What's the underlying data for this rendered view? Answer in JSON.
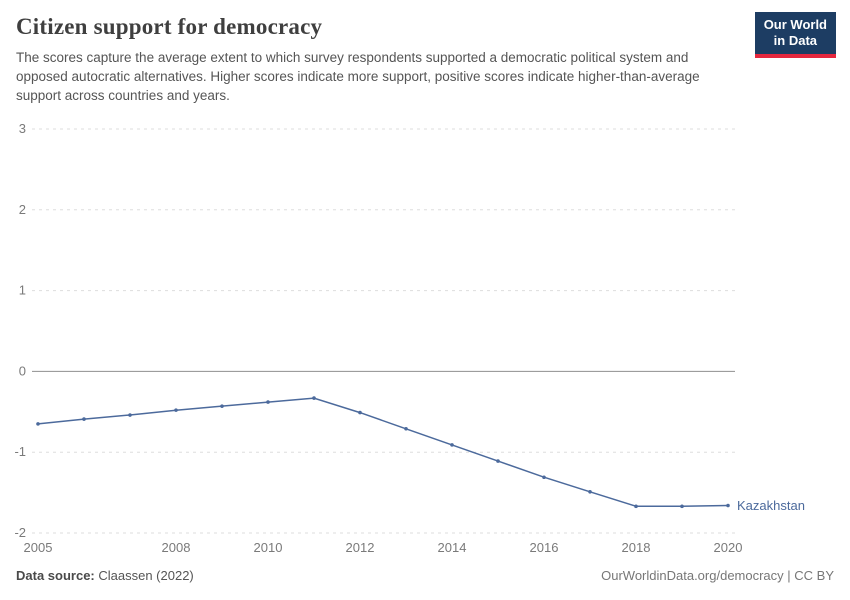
{
  "header": {
    "title": "Citizen support for democracy",
    "subtitle": "The scores capture the average extent to which survey respondents supported a democratic political system and opposed autocratic alternatives. Higher scores indicate more support, positive scores indicate higher-than-average support across countries and years."
  },
  "logo": {
    "line1": "Our World",
    "line2": "in Data"
  },
  "footer": {
    "source_label": "Data source:",
    "source_value": " Claassen (2022)",
    "right": "OurWorldinData.org/democracy | CC BY"
  },
  "chart_data": {
    "type": "line",
    "title": "Citizen support for democracy",
    "x": [
      2005,
      2006,
      2007,
      2008,
      2009,
      2010,
      2011,
      2012,
      2013,
      2014,
      2015,
      2016,
      2017,
      2018,
      2019,
      2020
    ],
    "series": [
      {
        "name": "Kazakhstan",
        "color": "#4C6A9C",
        "values": [
          -0.65,
          -0.59,
          -0.54,
          -0.48,
          -0.43,
          -0.38,
          -0.33,
          -0.51,
          -0.71,
          -0.91,
          -1.11,
          -1.31,
          -1.49,
          -1.67,
          -1.67,
          -1.66
        ]
      }
    ],
    "end_label": "Kazakhstan",
    "xlim": [
      2005,
      2020
    ],
    "ylim": [
      -2,
      3
    ],
    "x_ticks": [
      2005,
      2008,
      2010,
      2012,
      2014,
      2016,
      2018,
      2020
    ],
    "y_ticks": [
      3,
      2,
      1,
      0,
      -1,
      -2
    ],
    "grid": "horizontal-dashed",
    "zero_line": true,
    "legend_position": "end-of-line",
    "colors": {
      "gridline": "#dddddd",
      "zero_line": "#8f8f8f",
      "tick_label": "#7a7a7a"
    }
  }
}
